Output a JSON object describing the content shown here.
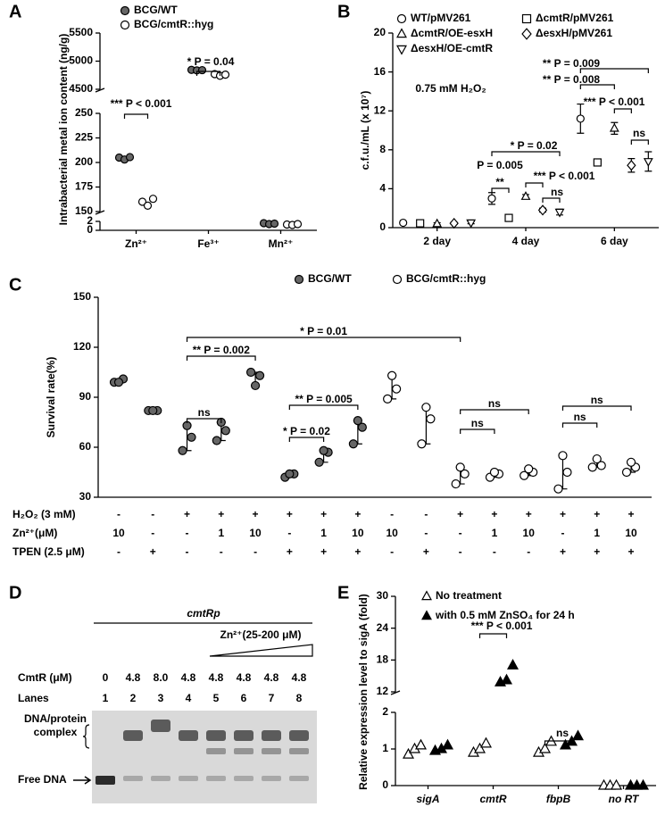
{
  "chart_data": [
    {
      "panel": "A",
      "type": "dot",
      "y_label": "Intrabacterial metal ion content (ng/g)",
      "categories": [
        "Zn²⁺",
        "Fe³⁺",
        "Mn²⁺"
      ],
      "y_segments": [
        {
          "ylim": [
            0,
            2
          ],
          "yticks": [
            0,
            2
          ]
        },
        {
          "ylim": [
            150,
            250
          ],
          "yticks": [
            150,
            175,
            200,
            225,
            250
          ]
        },
        {
          "ylim": [
            4500,
            5500
          ],
          "yticks": [
            4500,
            5000,
            5500
          ]
        }
      ],
      "series": [
        {
          "name": "BCG/WT",
          "color": "#666666",
          "marker": "circle",
          "values": [
            [
              205,
              203,
              205.5
            ],
            [
              4845,
              4835,
              4840
            ],
            [
              1.6,
              1.4,
              1.5
            ]
          ]
        },
        {
          "name": "BCG/cmtR::hyg",
          "color": "#ffffff",
          "marker": "circle",
          "values": [
            [
              160,
              156,
              163
            ],
            [
              4770,
              4740,
              4760
            ],
            [
              1.3,
              1.2,
              1.4
            ]
          ]
        }
      ],
      "annotations": [
        "*** P < 0.001",
        "* P = 0.04"
      ]
    },
    {
      "panel": "B",
      "type": "dot",
      "y_label": "c.f.u./mL (x 10⁷)",
      "note": "0.75 mM H₂O₂",
      "categories": [
        "2 day",
        "4 day",
        "6 day"
      ],
      "ylim": [
        0,
        20
      ],
      "yticks": [
        0,
        4,
        8,
        12,
        16,
        20
      ],
      "series": [
        {
          "name": "WT/pMV261",
          "color": "#ffffff",
          "marker": "circle",
          "values": [
            0.5,
            3.0,
            11.2
          ],
          "errors": [
            0.1,
            0.6,
            1.5
          ]
        },
        {
          "name": "ΔcmtR/pMV261",
          "color": "#ffffff",
          "marker": "square",
          "values": [
            0.45,
            1.0,
            6.7
          ],
          "errors": [
            0.1,
            0.1,
            0.2
          ]
        },
        {
          "name": "ΔcmtR/OE-esxH",
          "color": "#ffffff",
          "marker": "triangle-up",
          "values": [
            0.4,
            3.2,
            10.2
          ],
          "errors": [
            0.1,
            0.2,
            0.6
          ]
        },
        {
          "name": "ΔesxH/pMV261",
          "color": "#ffffff",
          "marker": "diamond",
          "values": [
            0.45,
            1.8,
            6.4
          ],
          "errors": [
            0.1,
            0.2,
            0.7
          ]
        },
        {
          "name": "ΔesxH/OE-cmtR",
          "color": "#ffffff",
          "marker": "triangle-down",
          "values": [
            0.5,
            1.6,
            6.8
          ],
          "errors": [
            0.1,
            0.3,
            1.0
          ]
        }
      ],
      "annotations": [
        "** P = 0.009",
        "** P = 0.008",
        "*** P < 0.001",
        "ns",
        "* P = 0.02",
        "P = 0.005",
        "**",
        "*** P < 0.001",
        "ns"
      ]
    },
    {
      "panel": "C",
      "type": "dot",
      "y_label": "Survival rate(%)",
      "ylim": [
        30,
        150
      ],
      "yticks": [
        30,
        60,
        90,
        120,
        150
      ],
      "series": [
        {
          "name": "BCG/WT",
          "color": "#666666",
          "marker": "circle",
          "values": [
            [
              99,
              101,
              99
            ],
            [
              82,
              82,
              82
            ],
            [
              58,
              66,
              73
            ],
            [
              64,
              70,
              75
            ],
            [
              105,
              103,
              97
            ],
            [
              42,
              44,
              44
            ],
            [
              51,
              57,
              58
            ],
            [
              62,
              72,
              76
            ],
            null,
            null,
            null,
            null,
            null,
            null,
            null,
            null
          ]
        },
        {
          "name": "BCG/cmtR::hyg",
          "color": "#ffffff",
          "marker": "circle",
          "values": [
            null,
            null,
            null,
            null,
            null,
            null,
            null,
            null,
            [
              89,
              95,
              103
            ],
            [
              62,
              77,
              84
            ],
            [
              38,
              44,
              48
            ],
            [
              42,
              44,
              45
            ],
            [
              43,
              45,
              47
            ],
            [
              35,
              45,
              55
            ],
            [
              48,
              49,
              53
            ],
            [
              45,
              48,
              51
            ]
          ]
        }
      ],
      "conditions": [
        {
          "label": "H₂O₂ (3 mM)",
          "cells": [
            "-",
            "-",
            "+",
            "+",
            "+",
            "+",
            "+",
            "+",
            "-",
            "-",
            "+",
            "+",
            "+",
            "+",
            "+",
            "+"
          ]
        },
        {
          "label": "Zn²⁺(μM)",
          "cells": [
            "10",
            "-",
            "-",
            "1",
            "10",
            "-",
            "1",
            "10",
            "10",
            "-",
            "-",
            "1",
            "10",
            "-",
            "1",
            "10"
          ]
        },
        {
          "label": "TPEN (2.5 μM)",
          "cells": [
            "-",
            "+",
            "-",
            "-",
            "-",
            "+",
            "+",
            "+",
            "-",
            "+",
            "-",
            "-",
            "-",
            "+",
            "+",
            "+"
          ]
        }
      ],
      "annotations": [
        "ns",
        "** P = 0.002",
        "* P = 0.01",
        "* P = 0.02",
        "** P = 0.005",
        "ns",
        "ns",
        "ns",
        "ns"
      ]
    },
    {
      "panel": "D",
      "type": "gel",
      "promoter": "cmtRp",
      "gradient_label": "Zn²⁺(25-200 μM)",
      "rows": [
        {
          "label": "CmtR (μM)",
          "cells": [
            "0",
            "4.8",
            "8.0",
            "4.8",
            "4.8",
            "4.8",
            "4.8",
            "4.8"
          ]
        },
        {
          "label": "Lanes",
          "cells": [
            "1",
            "2",
            "3",
            "4",
            "5",
            "6",
            "7",
            "8"
          ]
        }
      ],
      "band_labels": [
        "DNA/protein complex",
        "Free DNA"
      ]
    },
    {
      "panel": "E",
      "type": "dot",
      "y_label": "Relative expression level to sigA (fold)",
      "categories": [
        "sigA",
        "cmtR",
        "fbpB",
        "no RT"
      ],
      "y_segments": [
        {
          "ylim": [
            0,
            2
          ],
          "yticks": [
            0,
            1,
            2
          ]
        },
        {
          "ylim": [
            12,
            30
          ],
          "yticks": [
            12,
            18,
            24,
            30
          ]
        }
      ],
      "series": [
        {
          "name": "No treatment",
          "color": "#ffffff",
          "marker": "triangle-up",
          "values": [
            [
              0.85,
              1.0,
              1.1
            ],
            [
              0.9,
              1.0,
              1.15
            ],
            [
              0.9,
              1.0,
              1.2
            ],
            [
              0,
              0,
              0
            ]
          ]
        },
        {
          "name": "with 0.5 mM ZnSO₄ for 24 h",
          "color": "#000000",
          "marker": "triangle-up",
          "values": [
            [
              0.95,
              1.0,
              1.1
            ],
            [
              13.8,
              14.2,
              17.0
            ],
            [
              1.1,
              1.2,
              1.35
            ],
            [
              0,
              0,
              0
            ]
          ]
        }
      ],
      "annotations": [
        "*** P < 0.001",
        "ns"
      ]
    }
  ]
}
